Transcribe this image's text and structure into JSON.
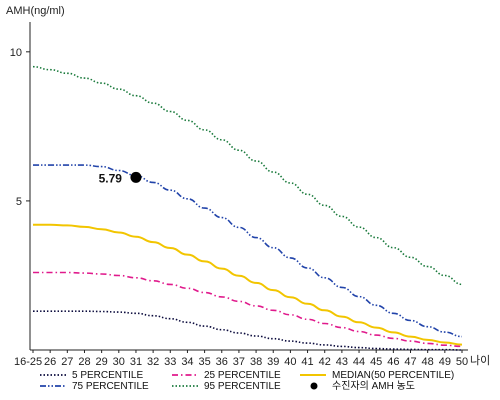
{
  "chart_data": {
    "type": "line",
    "ylabel": "AMH(ng/ml)",
    "xlabel": "나이",
    "ylim": [
      0,
      11
    ],
    "yticks": [
      5,
      10
    ],
    "categories": [
      "16-25",
      "26",
      "27",
      "28",
      "29",
      "30",
      "31",
      "32",
      "33",
      "34",
      "35",
      "36",
      "37",
      "38",
      "39",
      "40",
      "41",
      "42",
      "43",
      "44",
      "45",
      "46",
      "47",
      "48",
      "49",
      "50"
    ],
    "series": [
      {
        "name": "5 PERCENTILE",
        "color": "#0a0a3c",
        "dash": "dotted",
        "values": [
          1.3,
          1.3,
          1.3,
          1.3,
          1.29,
          1.27,
          1.23,
          1.15,
          1.05,
          0.93,
          0.8,
          0.68,
          0.57,
          0.47,
          0.38,
          0.3,
          0.23,
          0.17,
          0.12,
          0.08,
          0.05,
          0.03,
          0.02,
          0.01,
          0.01,
          0.0
        ]
      },
      {
        "name": "25 PERCENTILE",
        "color": "#e01a8c",
        "dash": "dashdot",
        "values": [
          2.6,
          2.6,
          2.6,
          2.58,
          2.55,
          2.5,
          2.42,
          2.32,
          2.2,
          2.07,
          1.93,
          1.78,
          1.63,
          1.48,
          1.33,
          1.18,
          1.03,
          0.89,
          0.75,
          0.62,
          0.5,
          0.39,
          0.3,
          0.22,
          0.16,
          0.12
        ]
      },
      {
        "name": "MEDIAN(50 PERCENTILE)",
        "color": "#f2c500",
        "dash": "solid",
        "values": [
          4.2,
          4.2,
          4.18,
          4.13,
          4.05,
          3.94,
          3.8,
          3.62,
          3.42,
          3.2,
          2.97,
          2.73,
          2.49,
          2.25,
          2.01,
          1.77,
          1.55,
          1.33,
          1.12,
          0.93,
          0.75,
          0.59,
          0.45,
          0.34,
          0.25,
          0.18
        ]
      },
      {
        "name": "75 PERCENTILE",
        "color": "#2244aa",
        "dash": "dashdotdot",
        "values": [
          6.2,
          6.2,
          6.2,
          6.2,
          6.15,
          6.02,
          5.85,
          5.62,
          5.36,
          5.07,
          4.76,
          4.44,
          4.11,
          3.77,
          3.43,
          3.09,
          2.75,
          2.42,
          2.1,
          1.79,
          1.5,
          1.23,
          0.99,
          0.78,
          0.6,
          0.45
        ]
      },
      {
        "name": "95 PERCENTILE",
        "color": "#1a7a3c",
        "dash": "dotted",
        "values": [
          9.5,
          9.4,
          9.28,
          9.12,
          8.95,
          8.75,
          8.53,
          8.28,
          8.0,
          7.7,
          7.38,
          7.05,
          6.7,
          6.34,
          5.97,
          5.6,
          5.22,
          4.85,
          4.48,
          4.12,
          3.77,
          3.43,
          3.11,
          2.8,
          2.5,
          2.2
        ]
      }
    ],
    "patient_point": {
      "name": "수진자의 AMH 농도",
      "x": "31",
      "y": 5.79,
      "label": "5.79",
      "color": "#000000"
    },
    "grid": false,
    "legend_position": "bottom"
  }
}
